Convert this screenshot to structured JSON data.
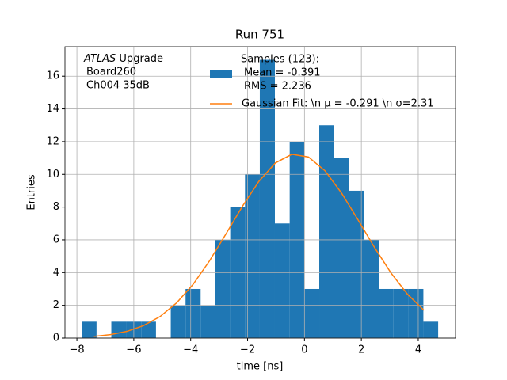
{
  "chart_data": {
    "type": "histogram",
    "title": "Run 751",
    "xlabel": "time [ns]",
    "ylabel": "Entries",
    "annotation": {
      "label": "ATLAS",
      "text": "Upgrade",
      "lines": [
        "Board260",
        "Ch004 35dB"
      ]
    },
    "bins": [
      -7.83,
      -7.31,
      -6.79,
      -6.26,
      -5.74,
      -5.22,
      -4.7,
      -4.18,
      -3.65,
      -3.13,
      -2.61,
      -2.09,
      -1.57,
      -1.04,
      -0.52,
      0.0,
      0.52,
      1.04,
      1.57,
      2.09,
      2.61,
      3.13,
      3.65,
      4.18,
      4.7
    ],
    "series": [
      {
        "name": [
          "Samples (123):",
          "Mean = -0.391",
          "RMS = 2.236"
        ],
        "color": "#1f77b4",
        "values": [
          1,
          0,
          1,
          1,
          1,
          0,
          2,
          3,
          2,
          6,
          8,
          10,
          17,
          7,
          12,
          3,
          13,
          11,
          9,
          6,
          3,
          3,
          3,
          1
        ]
      },
      {
        "name": "Gaussian Fit: \\n μ = -0.291 \\n σ=2.31",
        "color": "#ff7f0e",
        "type": "line",
        "x": [
          -7.4,
          -6.82,
          -6.24,
          -5.66,
          -5.08,
          -4.5,
          -3.92,
          -3.34,
          -2.76,
          -2.18,
          -1.6,
          -1.02,
          -0.44,
          0.14,
          0.72,
          1.3,
          1.88,
          2.46,
          3.04,
          3.62,
          4.2
        ],
        "values": [
          0.1,
          0.21,
          0.41,
          0.76,
          1.31,
          2.14,
          3.27,
          4.71,
          6.36,
          8.05,
          9.58,
          10.7,
          11.23,
          11.06,
          10.22,
          8.87,
          7.23,
          5.54,
          3.98,
          2.68,
          1.7
        ]
      }
    ],
    "xlim": [
      -8.42,
      5.31
    ],
    "ylim": [
      0,
      17.8
    ],
    "xticks": [
      {
        "value": -8,
        "label": "−8"
      },
      {
        "value": -6,
        "label": "−6"
      },
      {
        "value": -4,
        "label": "−4"
      },
      {
        "value": -2,
        "label": "−2"
      },
      0,
      2,
      4
    ],
    "yticks": [
      0,
      2,
      4,
      6,
      8,
      10,
      12,
      14,
      16
    ],
    "grid": true
  }
}
